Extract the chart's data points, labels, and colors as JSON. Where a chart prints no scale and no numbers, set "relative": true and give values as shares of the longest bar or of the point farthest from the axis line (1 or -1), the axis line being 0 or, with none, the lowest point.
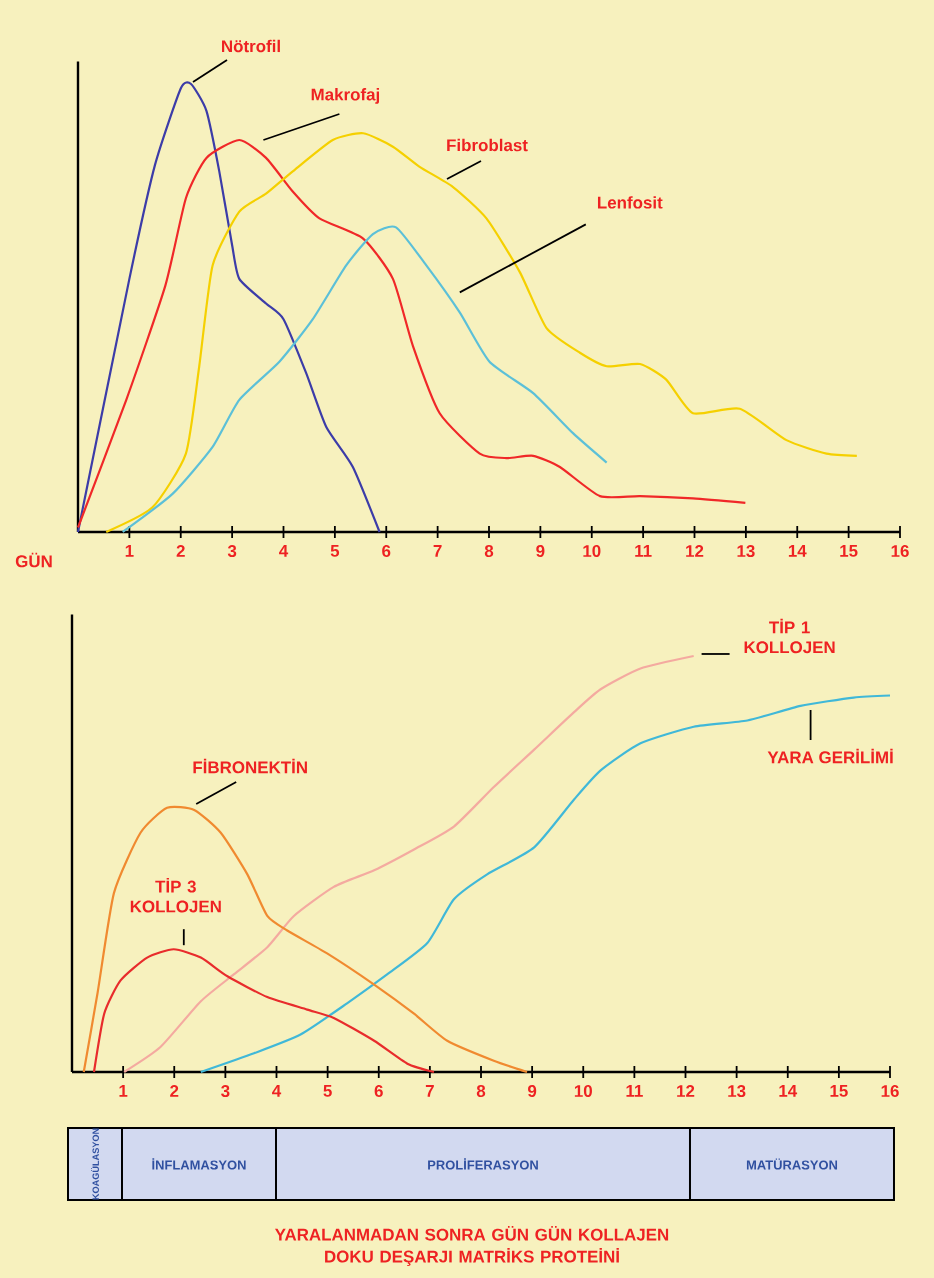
{
  "chart_data": [
    {
      "type": "line",
      "relative": true,
      "xlabel": "GÜN",
      "xlim": [
        0,
        16
      ],
      "xticks": [
        1,
        2,
        3,
        4,
        5,
        6,
        7,
        8,
        9,
        10,
        11,
        12,
        13,
        14,
        15,
        16
      ],
      "tick_labels": "x",
      "series": [
        {
          "name": "Nötrofil",
          "color": "#3c3ca8",
          "x": [
            0,
            1,
            1.5,
            2,
            2.2,
            2.5,
            2.75,
            3,
            3.14,
            3.66,
            4,
            4.44,
            4.83,
            5.35,
            5.87
          ],
          "values": [
            0,
            0.565,
            0.82,
            0.99,
            1,
            0.94,
            0.805,
            0.64,
            0.565,
            0.51,
            0.475,
            0.355,
            0.235,
            0.145,
            0
          ]
        },
        {
          "name": "Makrofaj",
          "color": "#f02828",
          "x": [
            0,
            0.94,
            1.7,
            2.1,
            2.5,
            3.14,
            3.66,
            4.18,
            4.7,
            5.55,
            6.13,
            6.52,
            7.04,
            7.82,
            8.34,
            8.86,
            9.38,
            10.16,
            10.94,
            11.97,
            12.99
          ],
          "values": [
            0.01,
            0.295,
            0.55,
            0.745,
            0.835,
            0.875,
            0.835,
            0.76,
            0.7,
            0.655,
            0.565,
            0.415,
            0.265,
            0.175,
            0.165,
            0.17,
            0.145,
            0.08,
            0.08,
            0.075,
            0.065
          ]
        },
        {
          "name": "Fibroblast",
          "color": "#f5d000",
          "x": [
            0.55,
            1.45,
            2.1,
            2.36,
            2.62,
            3.14,
            3.66,
            4.18,
            4.96,
            5.55,
            6.13,
            6.65,
            7.3,
            7.95,
            8.6,
            9.12,
            9.77,
            10.29,
            10.94,
            11.45,
            11.97,
            12.88,
            13.79,
            14.57,
            15.16
          ],
          "values": [
            0,
            0.055,
            0.175,
            0.37,
            0.595,
            0.715,
            0.755,
            0.805,
            0.875,
            0.89,
            0.86,
            0.815,
            0.77,
            0.7,
            0.58,
            0.455,
            0.4,
            0.37,
            0.375,
            0.34,
            0.265,
            0.275,
            0.205,
            0.175,
            0.17
          ]
        },
        {
          "name": "Lenfosit",
          "color": "#5cc0d8",
          "x": [
            0.87,
            1.84,
            2.62,
            3.14,
            3.92,
            4.57,
            5.22,
            5.74,
            6.19,
            6.78,
            7.43,
            8.01,
            8.86,
            9.64,
            10.29
          ],
          "values": [
            0,
            0.085,
            0.19,
            0.295,
            0.38,
            0.475,
            0.595,
            0.665,
            0.68,
            0.595,
            0.49,
            0.38,
            0.31,
            0.22,
            0.155
          ]
        }
      ]
    },
    {
      "type": "line",
      "relative": true,
      "xlim": [
        0,
        16
      ],
      "xticks": [
        1,
        2,
        3,
        4,
        5,
        6,
        7,
        8,
        9,
        10,
        11,
        12,
        13,
        14,
        15,
        16
      ],
      "tick_labels": "x",
      "series": [
        {
          "name": "TİP 1 KOLLOJEN",
          "color": "#f4aaa0",
          "x": [
            1.02,
            1.73,
            2.52,
            3.17,
            3.82,
            4.34,
            5.12,
            5.91,
            6.69,
            7.47,
            8.25,
            9.04,
            9.82,
            10.34,
            11.12,
            12.16
          ],
          "values": [
            0,
            0.06,
            0.17,
            0.235,
            0.3,
            0.375,
            0.445,
            0.485,
            0.535,
            0.59,
            0.685,
            0.775,
            0.865,
            0.92,
            0.97,
            1
          ]
        },
        {
          "name": "YARA GERİLİMİ",
          "color": "#40b8d8",
          "x": [
            2.52,
            3.56,
            4.47,
            5.38,
            6.17,
            6.95,
            7.47,
            8.12,
            9.04,
            9.82,
            10.34,
            11.12,
            12.16,
            13.21,
            14.25,
            15.29,
            16
          ],
          "values": [
            0,
            0.045,
            0.09,
            0.165,
            0.235,
            0.31,
            0.415,
            0.475,
            0.54,
            0.655,
            0.725,
            0.79,
            0.83,
            0.845,
            0.88,
            0.9,
            0.905
          ]
        },
        {
          "name": "FİBRONEKTİN",
          "color": "#f08a30",
          "x": [
            0.23,
            0.5,
            0.82,
            1.34,
            1.86,
            2.39,
            2.91,
            3.43,
            3.82,
            4.21,
            4.99,
            5.91,
            6.69,
            7.34,
            8.25,
            8.9
          ],
          "values": [
            0,
            0.19,
            0.43,
            0.575,
            0.635,
            0.63,
            0.575,
            0.475,
            0.375,
            0.34,
            0.285,
            0.21,
            0.14,
            0.075,
            0.027,
            0
          ]
        },
        {
          "name": "TİP 3 KOLLOJEN",
          "color": "#e82c2c",
          "x": [
            0.43,
            0.63,
            0.95,
            1.47,
            1.99,
            2.52,
            3.04,
            3.82,
            4.6,
            5.12,
            5.91,
            6.56,
            7.08
          ],
          "values": [
            0,
            0.14,
            0.22,
            0.275,
            0.295,
            0.275,
            0.23,
            0.18,
            0.15,
            0.13,
            0.075,
            0.02,
            0
          ]
        }
      ]
    },
    {
      "type": "other",
      "annotations": [
        "KOAGÜLASYON",
        "İNFLAMASYON",
        "PROLİFERASYON",
        "MATÜRASYON",
        "YARALANMADAN SONRA GÜN GÜN KOLLAJEN DOKU DEŞARJI MATRİKS PROTEİNİ"
      ]
    }
  ]
}
